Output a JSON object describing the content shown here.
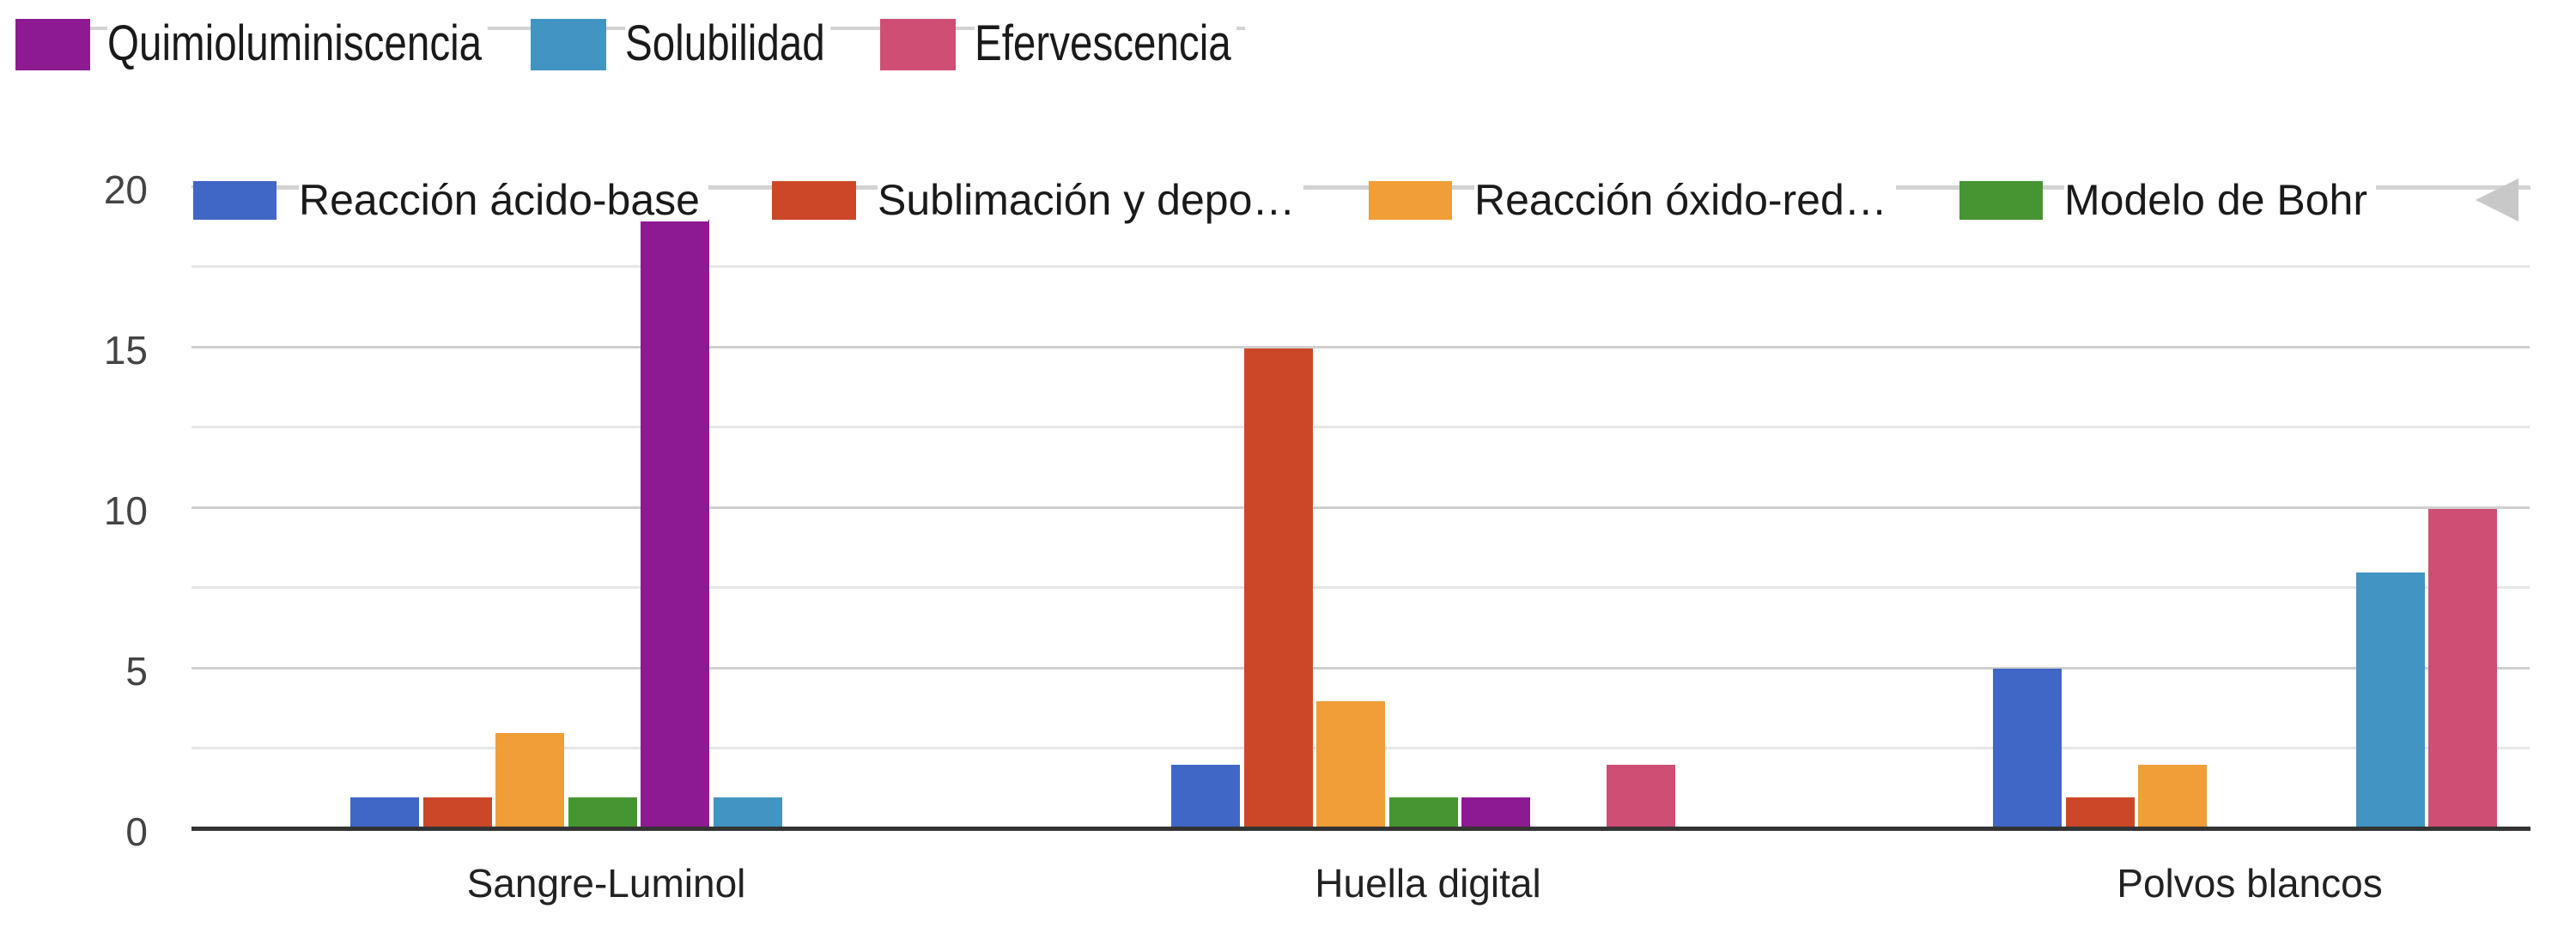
{
  "legend_top": {
    "items": [
      {
        "label": "Quimioluminiscencia",
        "color": "#8e1a92"
      },
      {
        "label": "Solubilidad",
        "color": "#4295c2"
      },
      {
        "label": "Efervescencia",
        "color": "#cf4f74"
      }
    ]
  },
  "legend_inner": {
    "items": [
      {
        "label": "Reacción ácido-base",
        "color": "#4066c6"
      },
      {
        "label": "Sublimación y depo…",
        "color": "#cc4728"
      },
      {
        "label": "Reacción óxido-red…",
        "color": "#f09e37"
      },
      {
        "label": "Modelo de Bohr",
        "color": "#459532"
      }
    ],
    "nav_arrow": "previous-page-arrow"
  },
  "y_axis": {
    "ticks": [
      "20",
      "15",
      "10",
      "5",
      "0"
    ]
  },
  "x_axis": {
    "labels": [
      "Sangre-Luminol",
      "Huella digital",
      "Polvos blancos"
    ]
  },
  "chart_data": {
    "type": "bar",
    "title": "",
    "xlabel": "",
    "ylabel": "",
    "ylim": [
      0,
      20
    ],
    "y_ticks": [
      0,
      5,
      10,
      15,
      20
    ],
    "grid": true,
    "legend_position": "top",
    "categories": [
      "Sangre-Luminol",
      "Huella digital",
      "Polvos blancos"
    ],
    "series": [
      {
        "name": "Reacción ácido-base",
        "color": "#4066c6",
        "values": [
          1,
          2,
          5
        ]
      },
      {
        "name": "Sublimación y depo…",
        "color": "#cc4728",
        "values": [
          1,
          15,
          1
        ]
      },
      {
        "name": "Reacción óxido-red…",
        "color": "#f09e37",
        "values": [
          3,
          4,
          2
        ]
      },
      {
        "name": "Modelo de Bohr",
        "color": "#459532",
        "values": [
          1,
          1,
          0
        ]
      },
      {
        "name": "Quimioluminiscencia",
        "color": "#8e1a92",
        "values": [
          19,
          1,
          0
        ]
      },
      {
        "name": "Solubilidad",
        "color": "#4295c2",
        "values": [
          1,
          0,
          8
        ]
      },
      {
        "name": "Efervescencia",
        "color": "#cf4f74",
        "values": [
          0,
          2,
          10
        ]
      }
    ]
  }
}
